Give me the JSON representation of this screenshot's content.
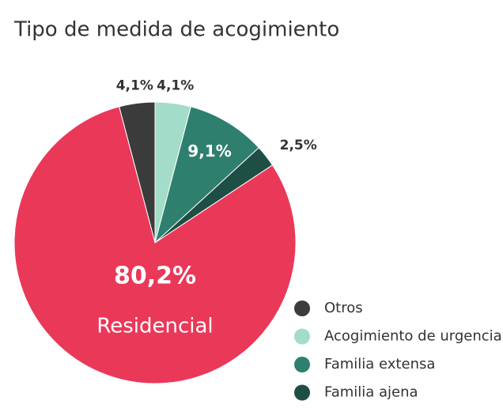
{
  "chart_data": {
    "type": "pie",
    "title": "Tipo de medida de acogimiento",
    "categories": [
      "Otros",
      "Acogimiento de urgencia",
      "Familia extensa",
      "Familia ajena",
      "Residencial"
    ],
    "values": [
      4.1,
      4.1,
      9.1,
      2.5,
      80.2
    ],
    "value_labels": [
      "4,1%",
      "4,1%",
      "9,1%",
      "2,5%",
      "80,2%"
    ],
    "colors": [
      "#3b3b3b",
      "#a3ddc9",
      "#2f7f6f",
      "#1f4e45",
      "#ea3859"
    ]
  }
}
